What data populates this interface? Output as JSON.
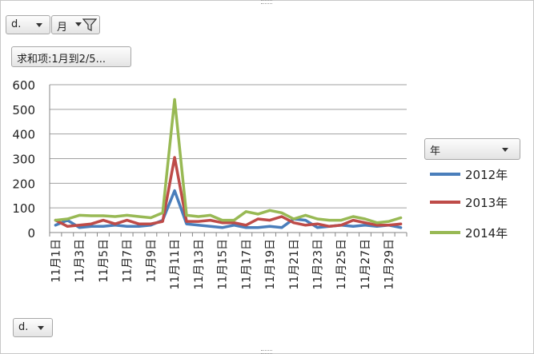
{
  "pivot": {
    "row_field_top": "d.",
    "column_field": "月",
    "value_field": "求和项:1月到2/5...",
    "row_field_bottom": "d."
  },
  "legend": {
    "title": "年",
    "items": [
      "2012年",
      "2013年",
      "2014年"
    ]
  },
  "chart_data": {
    "type": "line",
    "title": "",
    "xlabel": "",
    "ylabel": "",
    "ylim": [
      0,
      600
    ],
    "yticks": [
      0,
      100,
      200,
      300,
      400,
      500,
      600
    ],
    "grid": true,
    "legend_position": "right",
    "categories": [
      "11月1日",
      "11月2日",
      "11月3日",
      "11月4日",
      "11月5日",
      "11月6日",
      "11月7日",
      "11月8日",
      "11月9日",
      "11月10日",
      "11月11日",
      "11月12日",
      "11月13日",
      "11月14日",
      "11月15日",
      "11月16日",
      "11月17日",
      "11月18日",
      "11月19日",
      "11月20日",
      "11月21日",
      "11月22日",
      "11月23日",
      "11月24日",
      "11月25日",
      "11月26日",
      "11月27日",
      "11月28日",
      "11月29日",
      "11月30日"
    ],
    "tick_labels": [
      "11月1日",
      "11月3日",
      "11月5日",
      "11月7日",
      "11月9日",
      "11月11日",
      "11月13日",
      "11月15日",
      "11月17日",
      "11月19日",
      "11月21日",
      "11月23日",
      "11月25日",
      "11月27日",
      "11月29日"
    ],
    "series": [
      {
        "name": "2012年",
        "color": "#4a7ebb",
        "values": [
          30,
          50,
          20,
          25,
          25,
          30,
          25,
          25,
          30,
          50,
          170,
          35,
          30,
          25,
          20,
          30,
          20,
          20,
          25,
          20,
          55,
          50,
          20,
          25,
          30,
          25,
          30,
          25,
          30,
          20
        ]
      },
      {
        "name": "2013年",
        "color": "#be4b48",
        "values": [
          50,
          25,
          30,
          35,
          50,
          35,
          50,
          35,
          35,
          45,
          305,
          45,
          45,
          50,
          40,
          40,
          30,
          55,
          50,
          65,
          40,
          30,
          35,
          25,
          30,
          50,
          40,
          30,
          30,
          35
        ]
      },
      {
        "name": "2014年",
        "color": "#98b954",
        "values": [
          50,
          55,
          70,
          68,
          68,
          65,
          70,
          65,
          60,
          80,
          540,
          70,
          65,
          70,
          50,
          50,
          85,
          75,
          90,
          80,
          55,
          70,
          55,
          50,
          50,
          65,
          55,
          40,
          45,
          60
        ]
      }
    ]
  }
}
